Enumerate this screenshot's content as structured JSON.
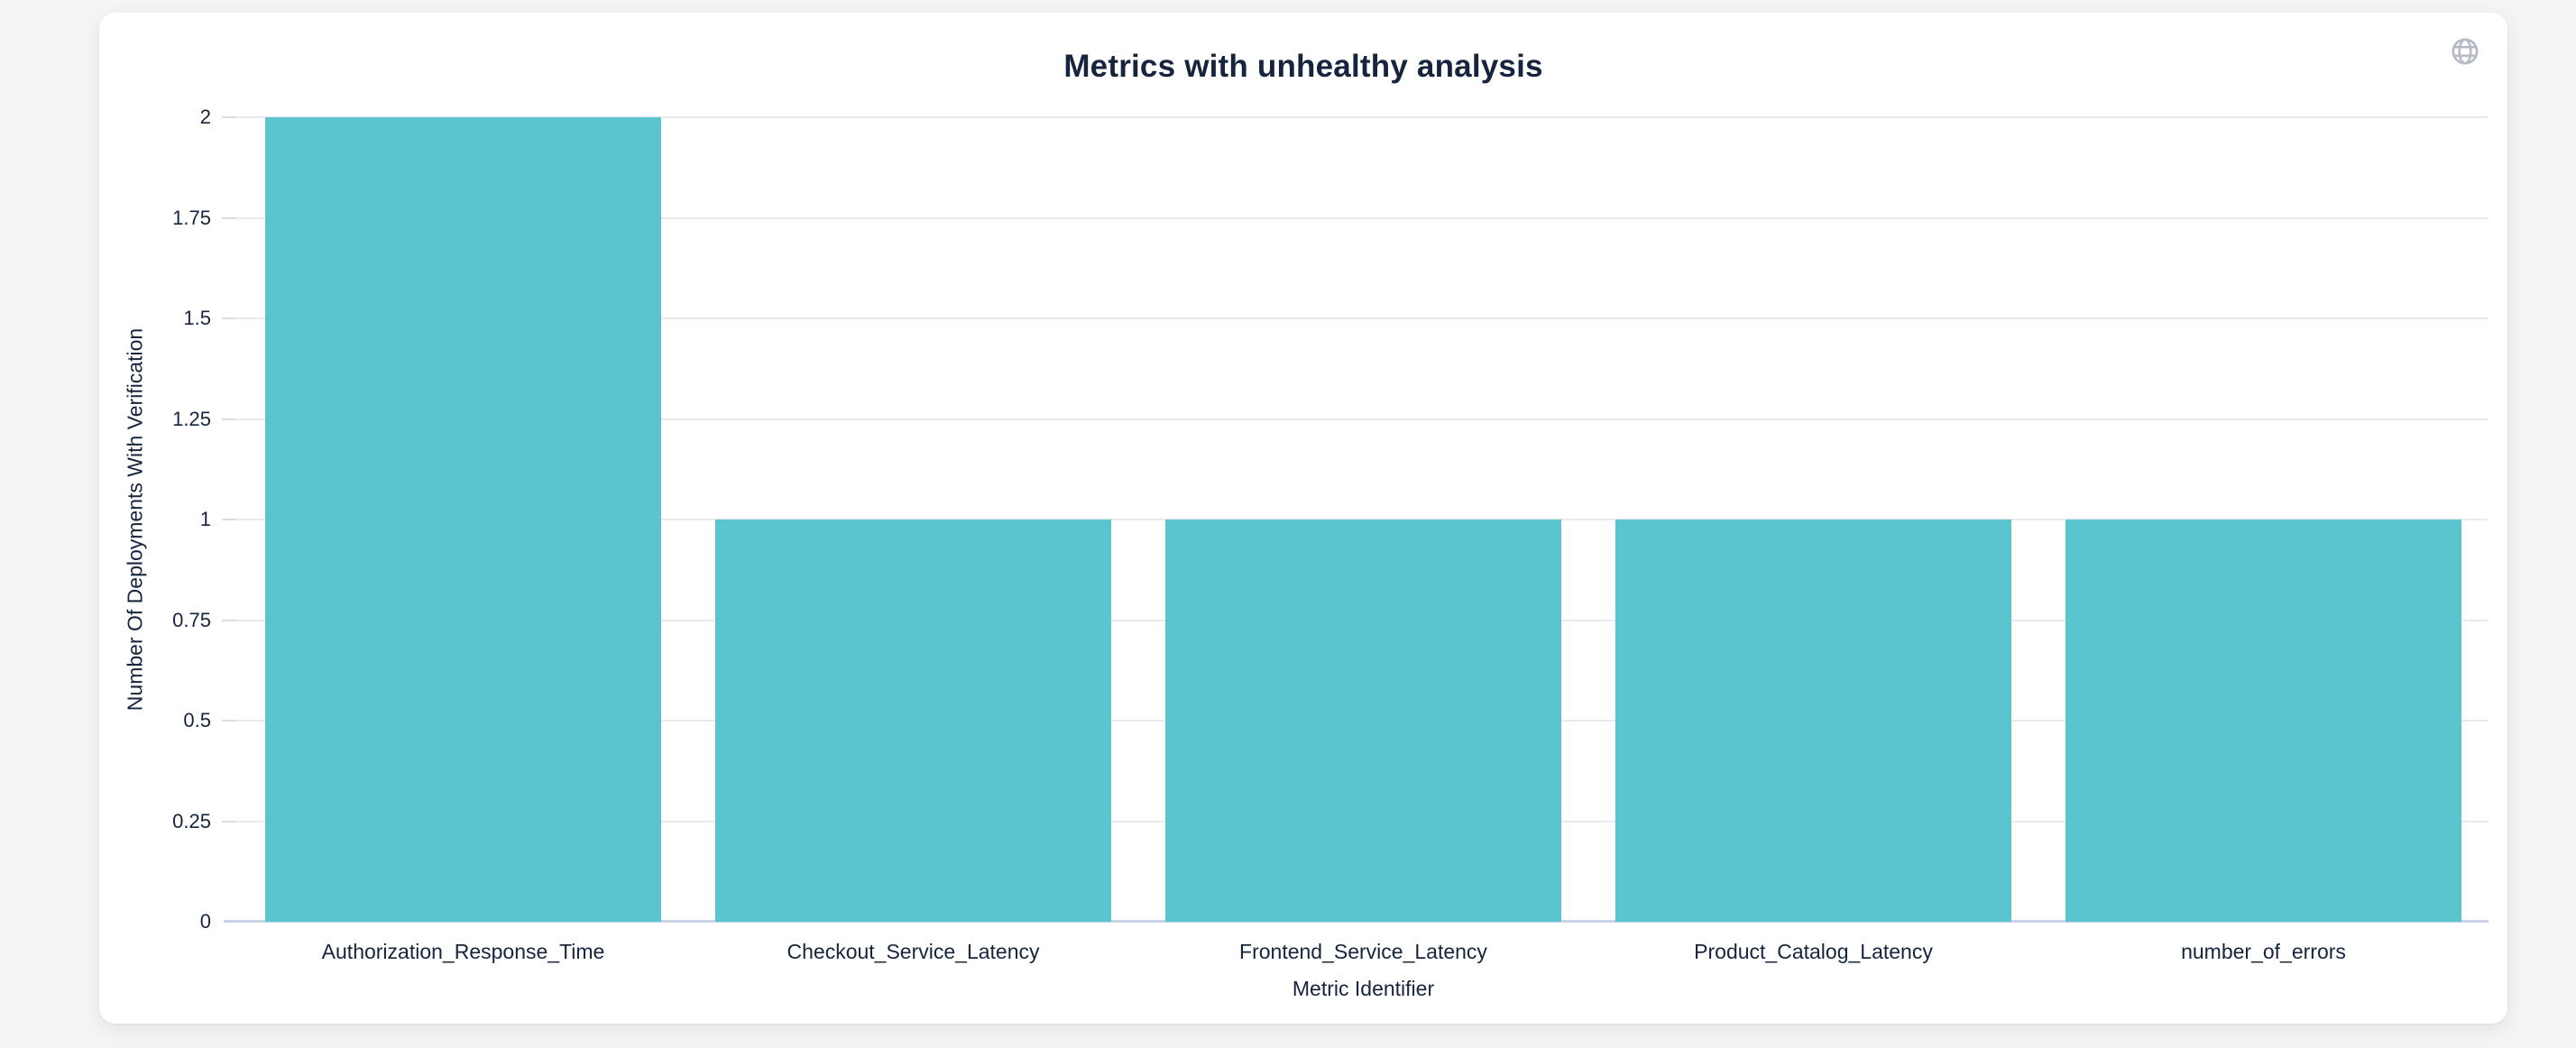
{
  "header": {
    "globe_icon": "globe"
  },
  "colors": {
    "background": "#f3f4f6",
    "card": "#ffffff",
    "text": "#16243d",
    "gridline": "#e9e9ee",
    "axis_line": "#c9d2e6",
    "tick_mark": "#dcdce2",
    "icon": "#b5bac6",
    "bar": "#5bc5cf"
  },
  "chart_data": {
    "type": "bar",
    "title": "Metrics with unhealthy analysis",
    "categories": [
      "Authorization_Response_Time",
      "Checkout_Service_Latency",
      "Frontend_Service_Latency",
      "Product_Catalog_Latency",
      "number_of_errors"
    ],
    "values": [
      2,
      1,
      1,
      1,
      1
    ],
    "xlabel": "Metric Identifier",
    "ylabel": "Number Of Deployments With Verification",
    "ylim": [
      0,
      2
    ],
    "ytick_step": 0.25,
    "ytick_labels": [
      "0",
      "0.25",
      "0.5",
      "0.75",
      "1",
      "1.25",
      "1.5",
      "1.75",
      "2"
    ],
    "grid": true,
    "legend": false,
    "bar_band_fraction": 0.88
  }
}
